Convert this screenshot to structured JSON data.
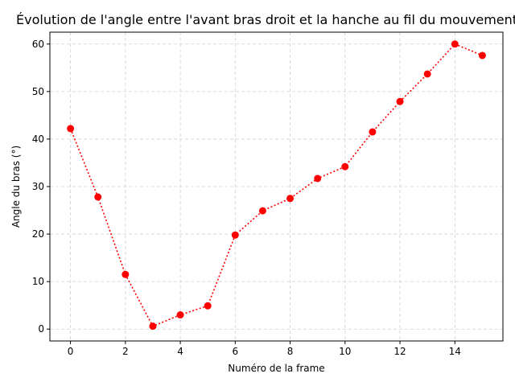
{
  "chart_data": {
    "type": "line",
    "title": "Évolution de l'angle entre l'avant bras droit et la hanche au fil du mouvement",
    "xlabel": "Numéro de la frame",
    "ylabel": "Angle du bras (°)",
    "xlim": [
      -0.75,
      15.75
    ],
    "ylim": [
      -2.5,
      62.5
    ],
    "x_ticks": [
      0,
      2,
      4,
      6,
      8,
      10,
      12,
      14
    ],
    "y_ticks": [
      0,
      10,
      20,
      30,
      40,
      50,
      60
    ],
    "grid": true,
    "series": [
      {
        "color": "#ff0000",
        "line_style": "dotted",
        "marker": "circle",
        "x": [
          0,
          1,
          2,
          3,
          4,
          5,
          6,
          7,
          8,
          9,
          10,
          11,
          12,
          13,
          14,
          15
        ],
        "y": [
          42.2,
          27.8,
          11.5,
          0.6,
          3.0,
          4.9,
          19.8,
          24.9,
          27.5,
          31.7,
          34.2,
          41.5,
          47.9,
          53.7,
          60.0,
          57.6
        ]
      }
    ]
  }
}
